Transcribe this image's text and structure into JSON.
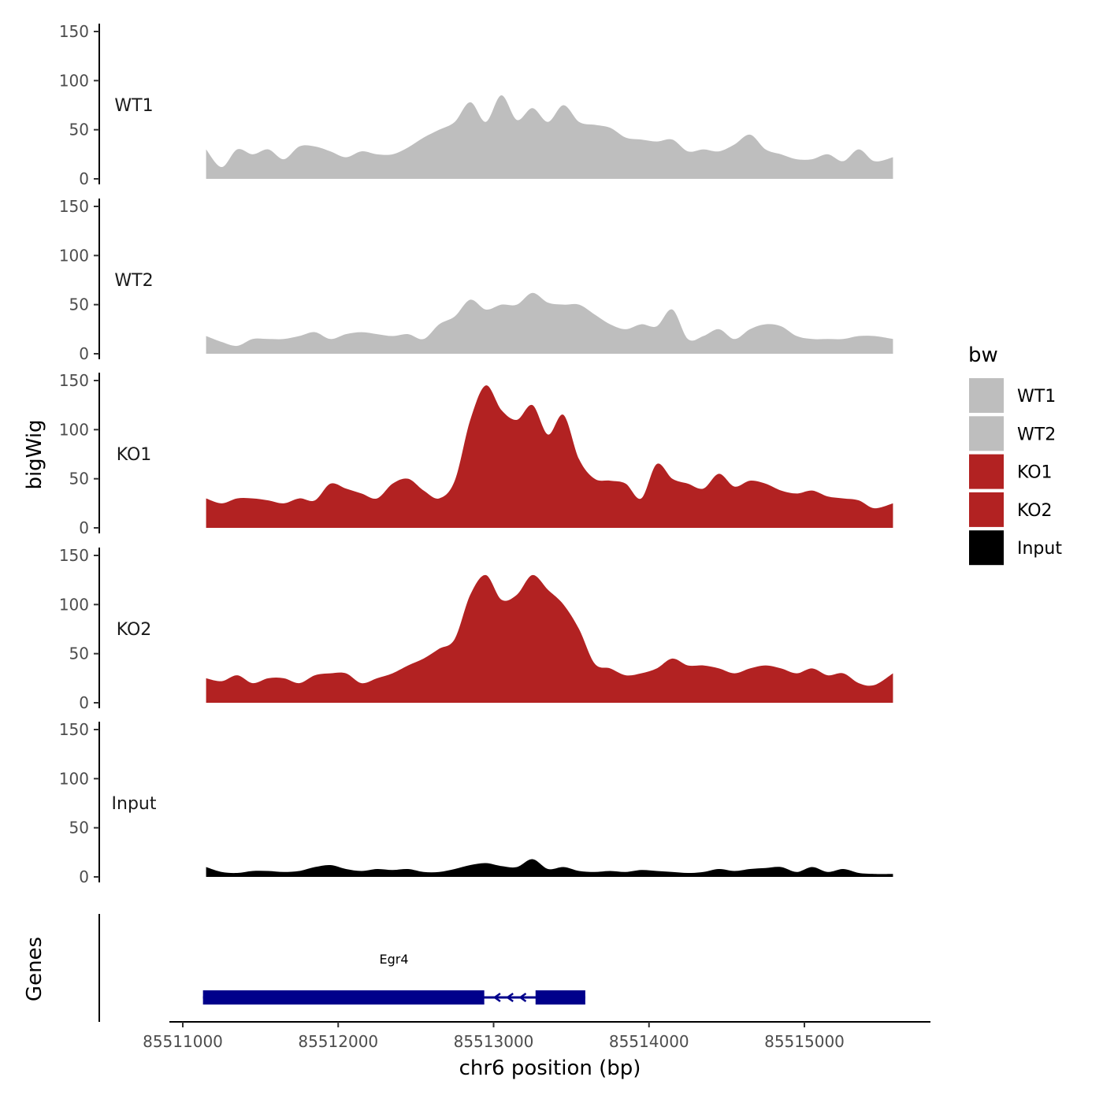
{
  "chart_data": {
    "type": "area",
    "ylabel": "bigWig",
    "xlabel": "chr6 position (bp)",
    "gene_track_label": "Genes",
    "xlim": [
      85510920,
      85515800
    ],
    "ylim": [
      0,
      150
    ],
    "x_ticks": [
      85511000,
      85512000,
      85513000,
      85514000,
      85515000
    ],
    "x_tick_labels": [
      "85511000",
      "85512000",
      "85513000",
      "85514000",
      "85515000"
    ],
    "y_ticks": [
      0,
      50,
      100,
      150
    ],
    "y_tick_labels": [
      "0",
      "50",
      "100",
      "150"
    ],
    "x_start": 85511150,
    "x_step": 100,
    "x_end_value": 85515570,
    "legend": {
      "title": "bw",
      "placement": "right",
      "entries": [
        {
          "label": "WT1",
          "color": "#bebebe"
        },
        {
          "label": "WT2",
          "color": "#bebebe"
        },
        {
          "label": "KO1",
          "color": "#b22222"
        },
        {
          "label": "KO2",
          "color": "#b22222"
        },
        {
          "label": "Input",
          "color": "#000000"
        }
      ]
    },
    "series": [
      {
        "name": "WT1",
        "color": "#bebebe",
        "values": [
          30,
          12,
          30,
          25,
          30,
          20,
          33,
          33,
          28,
          22,
          28,
          25,
          25,
          32,
          42,
          50,
          58,
          78,
          58,
          85,
          60,
          72,
          58,
          75,
          58,
          55,
          52,
          42,
          40,
          38,
          40,
          28,
          30,
          28,
          35,
          45,
          30,
          25,
          20,
          20,
          25,
          18,
          30,
          18,
          22
        ]
      },
      {
        "name": "WT2",
        "color": "#bebebe",
        "values": [
          18,
          12,
          8,
          15,
          15,
          15,
          18,
          22,
          15,
          20,
          22,
          20,
          18,
          20,
          15,
          30,
          38,
          55,
          45,
          50,
          50,
          62,
          52,
          50,
          50,
          40,
          30,
          25,
          30,
          28,
          45,
          15,
          18,
          25,
          15,
          25,
          30,
          28,
          18,
          15,
          15,
          15,
          18,
          18,
          15
        ]
      },
      {
        "name": "KO1",
        "color": "#b22222",
        "values": [
          30,
          25,
          30,
          30,
          28,
          25,
          30,
          28,
          45,
          40,
          35,
          30,
          45,
          50,
          38,
          30,
          48,
          110,
          145,
          120,
          110,
          125,
          95,
          115,
          70,
          50,
          48,
          45,
          30,
          65,
          50,
          45,
          40,
          55,
          42,
          48,
          45,
          38,
          35,
          38,
          32,
          30,
          28,
          20,
          25
        ]
      },
      {
        "name": "KO2",
        "color": "#b22222",
        "values": [
          25,
          22,
          28,
          20,
          25,
          25,
          20,
          28,
          30,
          30,
          20,
          25,
          30,
          38,
          45,
          55,
          65,
          110,
          130,
          105,
          110,
          130,
          115,
          100,
          75,
          40,
          35,
          28,
          30,
          35,
          45,
          38,
          38,
          35,
          30,
          35,
          38,
          35,
          30,
          35,
          28,
          30,
          20,
          18,
          30
        ]
      },
      {
        "name": "Input",
        "color": "#000000",
        "values": [
          10,
          5,
          4,
          6,
          6,
          5,
          6,
          10,
          12,
          8,
          6,
          8,
          7,
          8,
          5,
          5,
          8,
          12,
          14,
          11,
          10,
          18,
          8,
          10,
          6,
          5,
          6,
          5,
          7,
          6,
          5,
          4,
          5,
          8,
          6,
          8,
          9,
          10,
          5,
          10,
          5,
          8,
          4,
          3,
          3
        ]
      }
    ],
    "genes": [
      {
        "name": "Egr4",
        "strand": "-",
        "color": "#00008b",
        "start": 85511130,
        "end": 85513590,
        "exons": [
          [
            85511130,
            85512940
          ],
          [
            85513270,
            85513590
          ]
        ]
      }
    ]
  }
}
